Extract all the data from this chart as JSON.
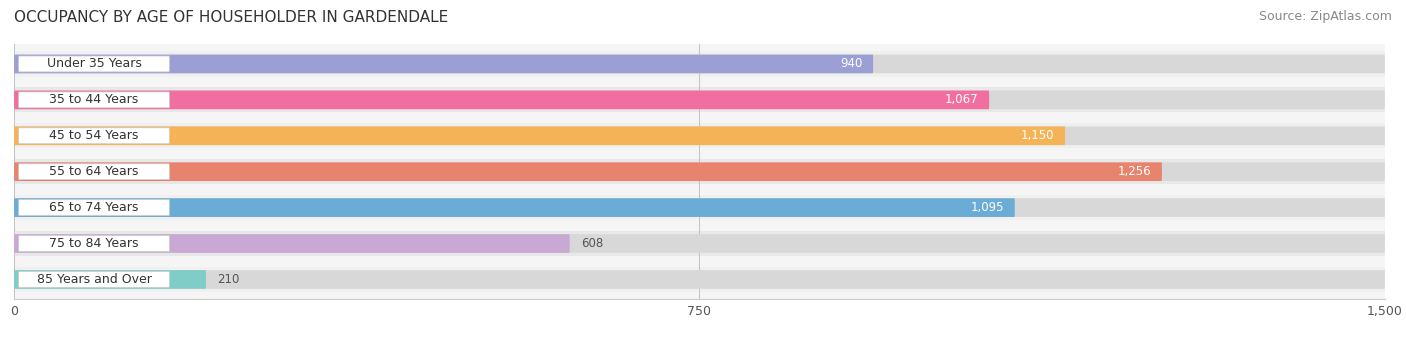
{
  "title": "OCCUPANCY BY AGE OF HOUSEHOLDER IN GARDENDALE",
  "source": "Source: ZipAtlas.com",
  "categories": [
    "Under 35 Years",
    "35 to 44 Years",
    "45 to 54 Years",
    "55 to 64 Years",
    "65 to 74 Years",
    "75 to 84 Years",
    "85 Years and Over"
  ],
  "values": [
    940,
    1067,
    1150,
    1256,
    1095,
    608,
    210
  ],
  "bar_colors": [
    "#9b9fd4",
    "#f06fa0",
    "#f5b358",
    "#e8836e",
    "#6bacd6",
    "#c9a8d4",
    "#80cdc8"
  ],
  "xlim": [
    0,
    1500
  ],
  "xticks": [
    0,
    750,
    1500
  ],
  "xticklabels": [
    "0",
    "750",
    "1,500"
  ],
  "title_fontsize": 11,
  "source_fontsize": 9,
  "label_fontsize": 9,
  "value_fontsize": 8.5,
  "row_bg_colors": [
    "#f0f0f0",
    "#e8e8e8"
  ],
  "bar_bg_color": "#d8d8d8",
  "label_pill_color": "#ffffff",
  "label_text_color": "#333333"
}
